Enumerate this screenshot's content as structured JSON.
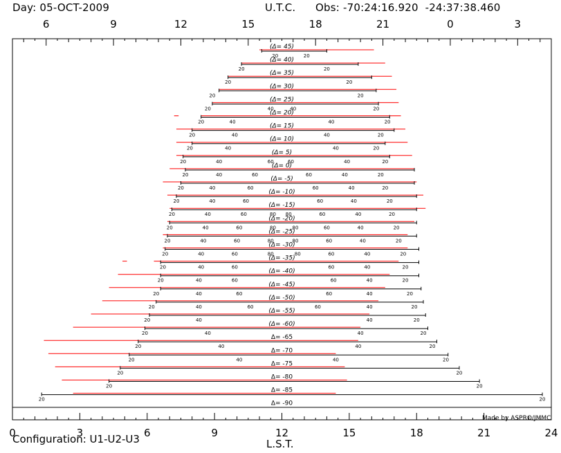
{
  "header": {
    "day": "Day: 05-OCT-2009",
    "utc_label": "U.T.C.",
    "obs": "Obs: -70:24:16.920  -24:37:38.460"
  },
  "footer": {
    "configuration": "Configuration: U1-U2-U3",
    "credit": "Made by ASPRO/JMMC"
  },
  "colors": {
    "observable": "#000000",
    "tracks": "#ff0000"
  },
  "chart_data": {
    "type": "gantt",
    "xlabel": "L.S.T.",
    "top_xlabel": "U.T.C.",
    "xlim": [
      0,
      24
    ],
    "x_ticks": [
      0,
      3,
      6,
      9,
      12,
      15,
      18,
      21,
      24
    ],
    "x_tick_labels": [
      "0",
      "3",
      "6",
      "9",
      "12",
      "15",
      "18",
      "21",
      "24"
    ],
    "top_ticks_lst": [
      1.5,
      4.5,
      7.5,
      10.5,
      13.5,
      16.5,
      19.5,
      22.5
    ],
    "top_tick_labels": [
      "6",
      "9",
      "12",
      "15",
      "18",
      "21",
      "0",
      "3"
    ],
    "grid": false,
    "rows": [
      {
        "label": "45",
        "italic": true,
        "black": [
          11.1,
          14.0
        ],
        "red": [
          [
            11.0,
            16.1
          ]
        ],
        "marks": [
          {
            "t": 11.7,
            "e": "20"
          },
          {
            "t": 13.1,
            "e": "20"
          }
        ]
      },
      {
        "label": "40",
        "italic": true,
        "black": [
          10.2,
          15.4
        ],
        "red": [
          [
            10.2,
            16.6
          ]
        ],
        "marks": [
          {
            "t": 10.2,
            "e": "20"
          },
          {
            "t": 14.0,
            "e": "20"
          }
        ]
      },
      {
        "label": "35",
        "italic": true,
        "black": [
          9.6,
          16.0
        ],
        "red": [
          [
            9.6,
            16.9
          ]
        ],
        "marks": [
          {
            "t": 9.6,
            "e": "20"
          },
          {
            "t": 15.0,
            "e": "20"
          }
        ]
      },
      {
        "label": "30",
        "italic": true,
        "black": [
          9.2,
          16.2
        ],
        "red": [
          [
            9.2,
            17.1
          ]
        ],
        "marks": [
          {
            "t": 8.9,
            "e": "20"
          },
          {
            "t": 15.5,
            "e": "20"
          }
        ]
      },
      {
        "label": "25",
        "italic": true,
        "black": [
          8.9,
          16.3
        ],
        "red": [
          [
            8.9,
            17.2
          ]
        ],
        "marks": [
          {
            "t": 8.7,
            "e": "20"
          },
          {
            "t": 11.5,
            "e": "40"
          },
          {
            "t": 12.5,
            "e": "40"
          },
          {
            "t": 16.2,
            "e": "20"
          }
        ]
      },
      {
        "label": "20",
        "italic": true,
        "black": [
          8.4,
          16.8
        ],
        "red": [
          [
            7.2,
            7.4
          ],
          [
            8.4,
            17.3
          ]
        ],
        "marks": [
          {
            "t": 8.4,
            "e": "20"
          },
          {
            "t": 9.8,
            "e": "40"
          },
          {
            "t": 14.2,
            "e": "40"
          },
          {
            "t": 16.7,
            "e": "20"
          }
        ]
      },
      {
        "label": "15",
        "italic": true,
        "black": [
          8.0,
          17.0
        ],
        "red": [
          [
            7.3,
            17.5
          ]
        ],
        "marks": [
          {
            "t": 8.0,
            "e": "20"
          },
          {
            "t": 9.9,
            "e": "40"
          },
          {
            "t": 14.0,
            "e": "40"
          },
          {
            "t": 16.4,
            "e": "20"
          }
        ]
      },
      {
        "label": "10",
        "italic": true,
        "black": [
          8.0,
          16.6
        ],
        "red": [
          [
            7.3,
            17.6
          ]
        ],
        "marks": [
          {
            "t": 7.9,
            "e": "20"
          },
          {
            "t": 9.6,
            "e": "40"
          },
          {
            "t": 14.4,
            "e": "40"
          },
          {
            "t": 16.2,
            "e": "20"
          }
        ]
      },
      {
        "label": "5",
        "italic": true,
        "black": [
          7.6,
          16.8
        ],
        "red": [
          [
            7.3,
            17.8
          ]
        ],
        "marks": [
          {
            "t": 7.6,
            "e": "20"
          },
          {
            "t": 9.2,
            "e": "40"
          },
          {
            "t": 11.5,
            "e": "60"
          },
          {
            "t": 12.4,
            "e": "60"
          },
          {
            "t": 14.9,
            "e": "40"
          },
          {
            "t": 16.6,
            "e": "20"
          }
        ]
      },
      {
        "label": "0",
        "italic": true,
        "black": [
          7.7,
          17.9
        ],
        "red": [
          [
            7.0,
            17.9
          ]
        ],
        "marks": [
          {
            "t": 7.7,
            "e": "20"
          },
          {
            "t": 9.2,
            "e": "40"
          },
          {
            "t": 10.8,
            "e": "60"
          },
          {
            "t": 13.2,
            "e": "60"
          },
          {
            "t": 14.8,
            "e": "40"
          },
          {
            "t": 16.4,
            "e": "20"
          }
        ]
      },
      {
        "label": "-5",
        "italic": true,
        "black": [
          7.5,
          17.9
        ],
        "red": [
          [
            6.7,
            18.0
          ]
        ],
        "marks": [
          {
            "t": 7.5,
            "e": "20"
          },
          {
            "t": 8.9,
            "e": "40"
          },
          {
            "t": 10.6,
            "e": "60"
          },
          {
            "t": 13.5,
            "e": "60"
          },
          {
            "t": 15.1,
            "e": "40"
          },
          {
            "t": 16.6,
            "e": "20"
          }
        ]
      },
      {
        "label": "-10",
        "italic": true,
        "black": [
          7.3,
          18.0
        ],
        "red": [
          [
            6.9,
            18.3
          ]
        ],
        "marks": [
          {
            "t": 7.3,
            "e": "20"
          },
          {
            "t": 8.9,
            "e": "40"
          },
          {
            "t": 10.4,
            "e": "60"
          },
          {
            "t": 13.7,
            "e": "60"
          },
          {
            "t": 15.2,
            "e": "40"
          },
          {
            "t": 16.8,
            "e": "20"
          }
        ]
      },
      {
        "label": "-15",
        "italic": true,
        "black": [
          7.1,
          18.0
        ],
        "red": [
          [
            7.0,
            18.4
          ]
        ],
        "marks": [
          {
            "t": 7.1,
            "e": "20"
          },
          {
            "t": 8.7,
            "e": "40"
          },
          {
            "t": 10.3,
            "e": "60"
          },
          {
            "t": 11.6,
            "e": "80"
          },
          {
            "t": 12.3,
            "e": "80"
          },
          {
            "t": 13.8,
            "e": "60"
          },
          {
            "t": 15.4,
            "e": "40"
          },
          {
            "t": 16.9,
            "e": "20"
          }
        ]
      },
      {
        "label": "-20",
        "italic": true,
        "black": [
          7.0,
          18.0
        ],
        "red": [
          [
            6.9,
            17.9
          ]
        ],
        "marks": [
          {
            "t": 7.0,
            "e": "20"
          },
          {
            "t": 8.6,
            "e": "40"
          },
          {
            "t": 10.1,
            "e": "60"
          },
          {
            "t": 11.6,
            "e": "80"
          },
          {
            "t": 12.6,
            "e": "80"
          },
          {
            "t": 14.0,
            "e": "60"
          },
          {
            "t": 15.5,
            "e": "40"
          },
          {
            "t": 17.1,
            "e": "20"
          }
        ]
      },
      {
        "label": "-25",
        "italic": true,
        "black": [
          6.9,
          18.0
        ],
        "red": [
          [
            6.7,
            17.6
          ]
        ],
        "marks": [
          {
            "t": 6.9,
            "e": "20"
          },
          {
            "t": 8.5,
            "e": "40"
          },
          {
            "t": 10.0,
            "e": "60"
          },
          {
            "t": 11.5,
            "e": "80"
          },
          {
            "t": 12.6,
            "e": "80"
          },
          {
            "t": 14.1,
            "e": "60"
          },
          {
            "t": 15.6,
            "e": "40"
          },
          {
            "t": 17.2,
            "e": "20"
          }
        ]
      },
      {
        "label": "-30",
        "italic": true,
        "black": [
          6.8,
          18.1
        ],
        "red": [
          [
            6.7,
            17.6
          ]
        ],
        "marks": [
          {
            "t": 6.8,
            "e": "20"
          },
          {
            "t": 8.4,
            "e": "40"
          },
          {
            "t": 9.9,
            "e": "60"
          },
          {
            "t": 11.5,
            "e": "80"
          },
          {
            "t": 12.7,
            "e": "80"
          },
          {
            "t": 14.2,
            "e": "60"
          },
          {
            "t": 15.8,
            "e": "40"
          },
          {
            "t": 17.4,
            "e": "20"
          }
        ]
      },
      {
        "label": "-35",
        "italic": true,
        "black": [
          6.6,
          18.1
        ],
        "red": [
          [
            4.9,
            5.1
          ],
          [
            6.3,
            17.2
          ]
        ],
        "marks": [
          {
            "t": 6.7,
            "e": "20"
          },
          {
            "t": 8.4,
            "e": "40"
          },
          {
            "t": 9.9,
            "e": "60"
          },
          {
            "t": 14.2,
            "e": "60"
          },
          {
            "t": 15.8,
            "e": "40"
          },
          {
            "t": 17.5,
            "e": "20"
          }
        ]
      },
      {
        "label": "-40",
        "italic": true,
        "black": [
          6.6,
          18.1
        ],
        "red": [
          [
            4.7,
            16.8
          ]
        ],
        "marks": [
          {
            "t": 6.6,
            "e": "20"
          },
          {
            "t": 8.3,
            "e": "40"
          },
          {
            "t": 9.9,
            "e": "60"
          },
          {
            "t": 14.3,
            "e": "60"
          },
          {
            "t": 15.9,
            "e": "40"
          },
          {
            "t": 17.5,
            "e": "20"
          }
        ]
      },
      {
        "label": "-45",
        "italic": true,
        "black": [
          6.6,
          18.2
        ],
        "red": [
          [
            4.3,
            16.6
          ]
        ],
        "marks": [
          {
            "t": 6.4,
            "e": "20"
          },
          {
            "t": 8.3,
            "e": "40"
          },
          {
            "t": 10.1,
            "e": "60"
          },
          {
            "t": 14.1,
            "e": "60"
          },
          {
            "t": 15.9,
            "e": "40"
          },
          {
            "t": 17.7,
            "e": "20"
          }
        ]
      },
      {
        "label": "-50",
        "italic": true,
        "black": [
          6.4,
          18.3
        ],
        "red": [
          [
            4.0,
            16.3
          ]
        ],
        "marks": [
          {
            "t": 6.2,
            "e": "20"
          },
          {
            "t": 8.3,
            "e": "40"
          },
          {
            "t": 10.6,
            "e": "60"
          },
          {
            "t": 13.6,
            "e": "60"
          },
          {
            "t": 15.9,
            "e": "40"
          },
          {
            "t": 17.9,
            "e": "20"
          }
        ]
      },
      {
        "label": "-55",
        "italic": true,
        "black": [
          6.1,
          18.4
        ],
        "red": [
          [
            3.5,
            15.9
          ]
        ],
        "marks": [
          {
            "t": 6.0,
            "e": "20"
          },
          {
            "t": 8.3,
            "e": "40"
          },
          {
            "t": 15.9,
            "e": "40"
          },
          {
            "t": 18.0,
            "e": "20"
          }
        ]
      },
      {
        "label": "-60",
        "italic": true,
        "black": [
          5.9,
          18.5
        ],
        "red": [
          [
            2.7,
            15.5
          ]
        ],
        "marks": [
          {
            "t": 5.9,
            "e": "20"
          },
          {
            "t": 8.7,
            "e": "40"
          },
          {
            "t": 15.5,
            "e": "40"
          },
          {
            "t": 18.3,
            "e": "20"
          }
        ]
      },
      {
        "label": "-65",
        "italic": false,
        "black": [
          5.6,
          18.9
        ],
        "red": [
          [
            1.4,
            15.4
          ]
        ],
        "marks": [
          {
            "t": 5.6,
            "e": "20"
          },
          {
            "t": 9.3,
            "e": "40"
          },
          {
            "t": 15.4,
            "e": "40"
          },
          {
            "t": 18.7,
            "e": "20"
          }
        ]
      },
      {
        "label": "-70",
        "italic": false,
        "black": [
          5.2,
          19.4
        ],
        "red": [
          [
            1.6,
            14.4
          ]
        ],
        "marks": [
          {
            "t": 5.3,
            "e": "20"
          },
          {
            "t": 10.1,
            "e": "40"
          },
          {
            "t": 14.4,
            "e": "40"
          },
          {
            "t": 19.3,
            "e": "20"
          }
        ]
      },
      {
        "label": "-75",
        "italic": false,
        "black": [
          4.8,
          19.9
        ],
        "red": [
          [
            1.9,
            14.8
          ]
        ],
        "marks": [
          {
            "t": 4.8,
            "e": "20"
          },
          {
            "t": 19.9,
            "e": "20"
          }
        ]
      },
      {
        "label": "-80",
        "italic": false,
        "black": [
          4.3,
          20.8
        ],
        "red": [
          [
            2.2,
            14.9
          ]
        ],
        "marks": [
          {
            "t": 4.3,
            "e": "20"
          },
          {
            "t": 20.8,
            "e": "20"
          }
        ]
      },
      {
        "label": "-85",
        "italic": false,
        "black": [
          1.3,
          23.6
        ],
        "red": [
          [
            2.7,
            14.4
          ]
        ],
        "marks": [
          {
            "t": 1.3,
            "e": "20"
          },
          {
            "t": 23.6,
            "e": "20"
          }
        ]
      },
      {
        "label": "-90",
        "italic": false,
        "black": null,
        "red": [],
        "marks": []
      }
    ]
  }
}
